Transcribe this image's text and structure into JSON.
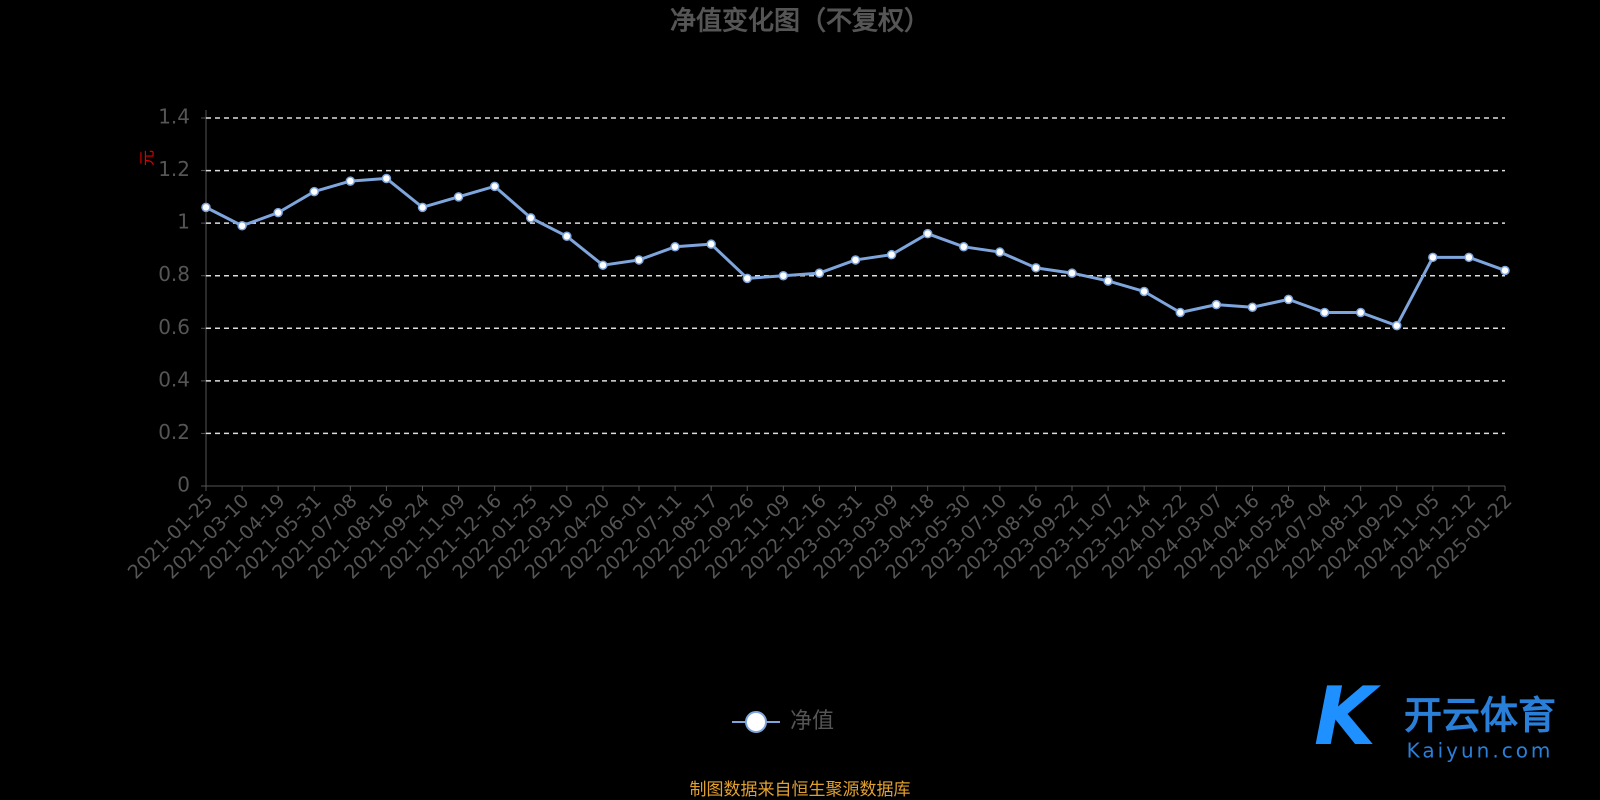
{
  "chart_data": {
    "type": "line",
    "title": "净值变化图（不复权）",
    "y_label": "元",
    "categories": [
      "2021-01-25",
      "2021-03-10",
      "2021-04-19",
      "2021-05-31",
      "2021-07-08",
      "2021-08-16",
      "2021-09-24",
      "2021-11-09",
      "2021-12-16",
      "2022-01-25",
      "2022-03-10",
      "2022-04-20",
      "2022-06-01",
      "2022-07-11",
      "2022-08-17",
      "2022-09-26",
      "2022-11-09",
      "2022-12-16",
      "2023-01-31",
      "2023-03-09",
      "2023-04-18",
      "2023-05-30",
      "2023-07-10",
      "2023-08-16",
      "2023-09-22",
      "2023-11-07",
      "2023-12-14",
      "2024-01-22",
      "2024-03-07",
      "2024-04-16",
      "2024-05-28",
      "2024-07-04",
      "2024-08-12",
      "2024-09-20",
      "2024-11-05",
      "2024-12-12",
      "2025-01-22"
    ],
    "series": [
      {
        "name": "净值",
        "color": "#7ea6dc",
        "values": [
          1.06,
          0.99,
          1.04,
          1.12,
          1.16,
          1.17,
          1.06,
          1.1,
          1.14,
          1.02,
          0.95,
          0.84,
          0.86,
          0.91,
          0.92,
          0.79,
          0.8,
          0.81,
          0.86,
          0.88,
          0.96,
          0.91,
          0.89,
          0.83,
          0.81,
          0.78,
          0.74,
          0.66,
          0.69,
          0.68,
          0.71,
          0.66,
          0.66,
          0.61,
          0.87,
          0.87,
          0.82
        ]
      }
    ],
    "ylim": [
      0,
      1.4
    ],
    "yticks": [
      0,
      0.2,
      0.4,
      0.6,
      0.8,
      1,
      1.2,
      1.4
    ],
    "grid": true,
    "source": "制图数据来自恒生聚源数据库",
    "watermark": [
      "开云体育",
      "Kaiyun.com"
    ]
  }
}
